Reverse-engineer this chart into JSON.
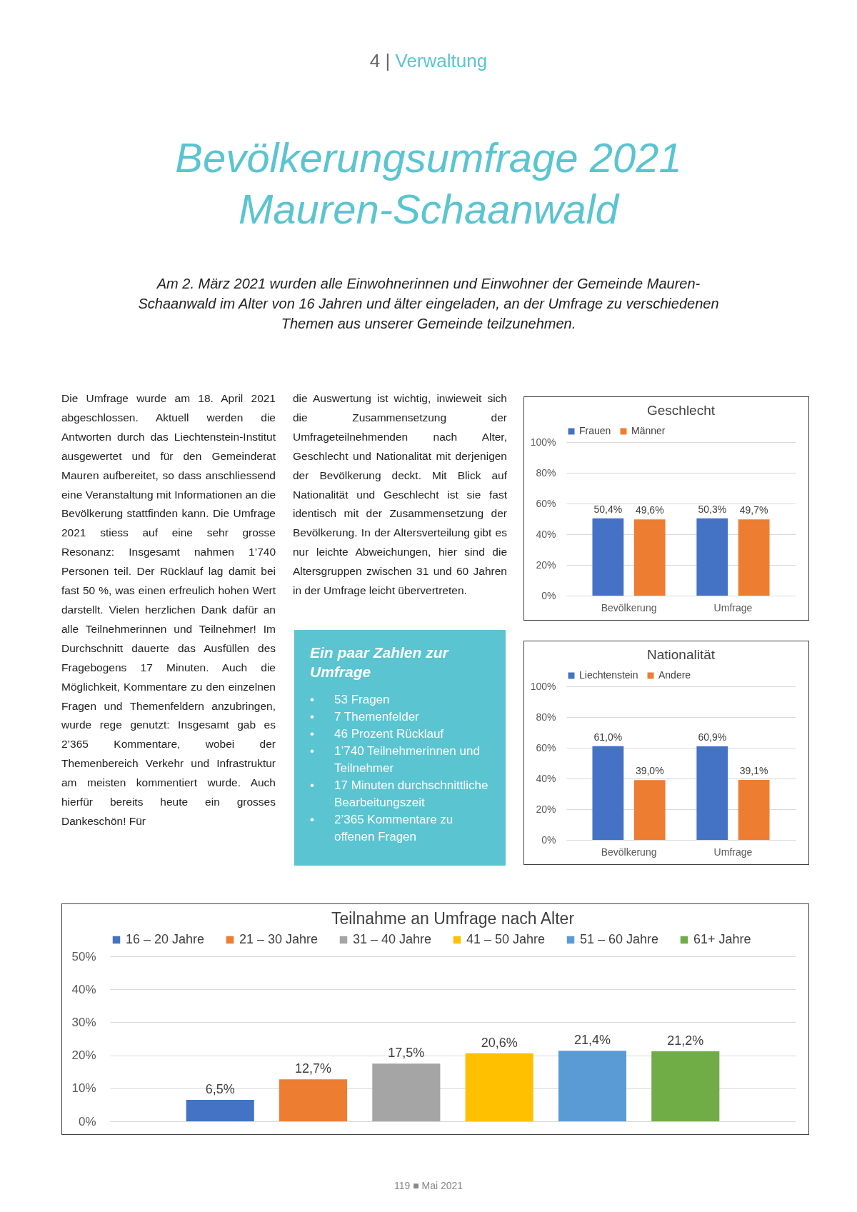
{
  "chart_data": [
    {
      "type": "other",
      "title": "Bevölkerungsumfrage 2021 Mauren-Schaanwald",
      "subtitle": "Am 2. März 2021 wurden alle Einwohnerinnen und Einwohner der Gemeinde Mauren-Schaanwald im Alter von 16 Jahren und älter eingeladen, an der Umfrage zu verschiedenen Themen aus unserer Gemeinde teilzunehmen.",
      "annotations": [
        "4 |",
        "Verwaltung",
        "119 ■ Mai 2021"
      ]
    },
    {
      "type": "other",
      "annotations": [
        "Die Umfrage wurde am 18. April 2021 abgeschlossen. Aktuell werden die Antworten durch das Liechtenstein-Institut ausgewertet und für den Gemeinderat Mauren aufbereitet, so dass anschliessend eine Veranstaltung mit Informationen an die Bevölkerung stattfinden kann. Die Umfrage 2021 stiess auf eine sehr grosse Resonanz: Insgesamt nahmen 1’740 Personen teil. Der Rücklauf lag damit bei fast 50 %, was einen erfreulich hohen Wert darstellt. Vielen herzlichen Dank dafür an alle Teilnehmerinnen und Teilnehmer! Im Durchschnitt dauerte das Ausfüllen des Fragebogens 17 Minuten. Auch die Möglichkeit, Kommentare zu den einzelnen Fragen und Themenfeldern anzubringen, wurde rege genutzt: Insgesamt gab es 2’365 Kommentare, wobei der Themenbereich Verkehr und Infrastruktur am meisten kommentiert wurde. Auch hierfür bereits heute ein grosses Dankeschön! Für",
        "die Auswertung ist wichtig, inwieweit sich die Zusammensetzung der Umfrageteilnehmenden nach Alter, Geschlecht und Nationalität mit derjenigen der Bevölkerung deckt. Mit Blick auf Nationalität und Geschlecht ist sie fast identisch mit der Zusammensetzung der Bevölkerung. In der Altersverteilung gibt es nur leichte Abweichungen, hier sind die Altersgruppen zwischen 31 und 60 Jahren in der Umfrage leicht übervertreten."
      ]
    },
    {
      "type": "other",
      "title": "Ein paar Zahlen zur Umfrage",
      "annotations": [
        "•\t53 Fragen",
        "•\t7 Themenfelder",
        "•\t46 Prozent Rücklauf",
        "•\t1’740 Teilnehmerinnen und Teilnehmer",
        "•\t17 Minuten durchschnittliche Bearbeitungszeit",
        "•\t2’365 Kommentare zu offenen Fragen"
      ]
    },
    {
      "type": "bar",
      "title": "Geschlecht",
      "categories": [
        "Bevölkerung",
        "Umfrage"
      ],
      "series": [
        {
          "name": "Frauen",
          "color": "#4472c4",
          "values": [
            50.4,
            50.3
          ],
          "value_labels": [
            "50,4%",
            "50,3%"
          ]
        },
        {
          "name": "Männer",
          "color": "#ed7d31",
          "values": [
            49.6,
            49.7
          ],
          "value_labels": [
            "49,6%",
            "49,7%"
          ]
        }
      ],
      "ylim": [
        0,
        100
      ],
      "yticks": [
        {
          "value": 0,
          "label": "0%"
        },
        {
          "value": 20,
          "label": "20%"
        },
        {
          "value": 40,
          "label": "40%"
        },
        {
          "value": 60,
          "label": "60%"
        },
        {
          "value": 80,
          "label": "80%"
        },
        {
          "value": 100,
          "label": "100%"
        }
      ],
      "grid": "y",
      "legend": "top"
    },
    {
      "type": "bar",
      "title": "Nationalität",
      "categories": [
        "Bevölkerung",
        "Umfrage"
      ],
      "series": [
        {
          "name": "Liechtenstein",
          "color": "#4472c4",
          "values": [
            61.0,
            60.9
          ],
          "value_labels": [
            "61,0%",
            "60,9%"
          ]
        },
        {
          "name": "Andere",
          "color": "#ed7d31",
          "values": [
            39.0,
            39.1
          ],
          "value_labels": [
            "39,0%",
            "39,1%"
          ]
        }
      ],
      "ylim": [
        0,
        100
      ],
      "yticks": [
        {
          "value": 0,
          "label": "0%"
        },
        {
          "value": 20,
          "label": "20%"
        },
        {
          "value": 40,
          "label": "40%"
        },
        {
          "value": 60,
          "label": "60%"
        },
        {
          "value": 80,
          "label": "80%"
        },
        {
          "value": 100,
          "label": "100%"
        }
      ],
      "grid": "y",
      "legend": "top"
    },
    {
      "type": "bar",
      "title": "Teilnahme an Umfrage nach Alter",
      "categories": [
        null
      ],
      "series": [
        {
          "name": "16 – 20 Jahre",
          "color": "#4472c4",
          "values": [
            6.5
          ],
          "value_labels": [
            "6,5%"
          ]
        },
        {
          "name": "21 – 30 Jahre",
          "color": "#ed7d31",
          "values": [
            12.7
          ],
          "value_labels": [
            "12,7%"
          ]
        },
        {
          "name": "31 – 40 Jahre",
          "color": "#a5a5a5",
          "values": [
            17.5
          ],
          "value_labels": [
            "17,5%"
          ]
        },
        {
          "name": "41 – 50 Jahre",
          "color": "#ffc000",
          "values": [
            20.6
          ],
          "value_labels": [
            "20,6%"
          ]
        },
        {
          "name": "51 – 60 Jahre",
          "color": "#5b9bd5",
          "values": [
            21.4
          ],
          "value_labels": [
            "21,4%"
          ]
        },
        {
          "name": "61+ Jahre",
          "color": "#70ad47",
          "values": [
            21.2
          ],
          "value_labels": [
            "21,2%"
          ]
        }
      ],
      "ylim": [
        0,
        50
      ],
      "yticks": [
        {
          "value": 0,
          "label": "0%"
        },
        {
          "value": 10,
          "label": "10%"
        },
        {
          "value": 20,
          "label": "20%"
        },
        {
          "value": 30,
          "label": "30%"
        },
        {
          "value": 40,
          "label": "40%"
        },
        {
          "value": 50,
          "label": "50%"
        }
      ],
      "grid": "y",
      "legend": "top",
      "tick_labels": "y"
    }
  ]
}
